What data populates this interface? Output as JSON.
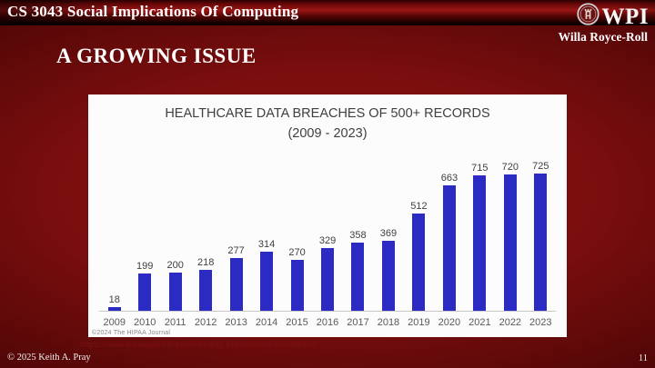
{
  "header": {
    "course_title": "CS 3043 Social Implications Of Computing",
    "logo_text": "WPI",
    "author": "Willa Royce-Roll"
  },
  "slide": {
    "title": "A GROWING ISSUE",
    "source_url": "https://www.hipaajournal.com/security-breaches-in-healthcare/",
    "footer_copyright": "© 2025 Keith A. Pray",
    "page_number": "11"
  },
  "chart_data": {
    "type": "bar",
    "title": "HEALTHCARE DATA BREACHES OF 500+ RECORDS",
    "subtitle": "(2009 - 2023)",
    "categories": [
      "2009",
      "2010",
      "2011",
      "2012",
      "2013",
      "2014",
      "2015",
      "2016",
      "2017",
      "2018",
      "2019",
      "2020",
      "2021",
      "2022",
      "2023"
    ],
    "values": [
      18,
      199,
      200,
      218,
      277,
      314,
      270,
      329,
      358,
      369,
      512,
      663,
      715,
      720,
      725
    ],
    "credit": "©2024 The HIPAA Journal",
    "bar_color": "#2b2bc3",
    "value_label_color": "#404040",
    "tick_label_color": "#595959",
    "axis_color": "#c9c9c9",
    "xlabel": "",
    "ylabel": "",
    "ylim": [
      0,
      725
    ],
    "grid": false,
    "legend_position": "none",
    "background": "#fcfcfc"
  }
}
